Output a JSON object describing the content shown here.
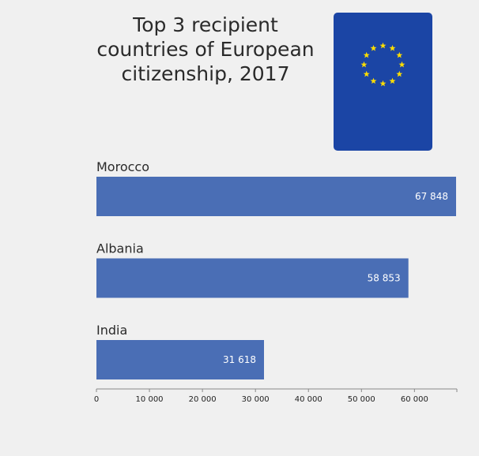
{
  "chart_data": {
    "type": "bar",
    "orientation": "horizontal",
    "title": "Top 3 recipient countries of European citizenship, 2017",
    "categories": [
      "Morocco",
      "Albania",
      "India"
    ],
    "values": [
      67848,
      58853,
      31618
    ],
    "value_labels": [
      "67 848",
      "58 853",
      "31 618"
    ],
    "xlim": [
      0,
      68000
    ],
    "ticks": [
      0,
      10000,
      20000,
      30000,
      40000,
      50000,
      60000
    ],
    "tick_labels": [
      "0",
      "10 000",
      "20 000",
      "30 000",
      "40 000",
      "50 000",
      "60 000"
    ],
    "grid": false,
    "legend": "none"
  },
  "colors": {
    "bar": "#4a6eb5",
    "label_inside": "#ffffff",
    "label_outside": "#222222",
    "flag_blue": "#1b45a5",
    "flag_star": "#ffde00",
    "axis": "#888888"
  },
  "flag": {
    "icon": "eu-flag-icon"
  }
}
